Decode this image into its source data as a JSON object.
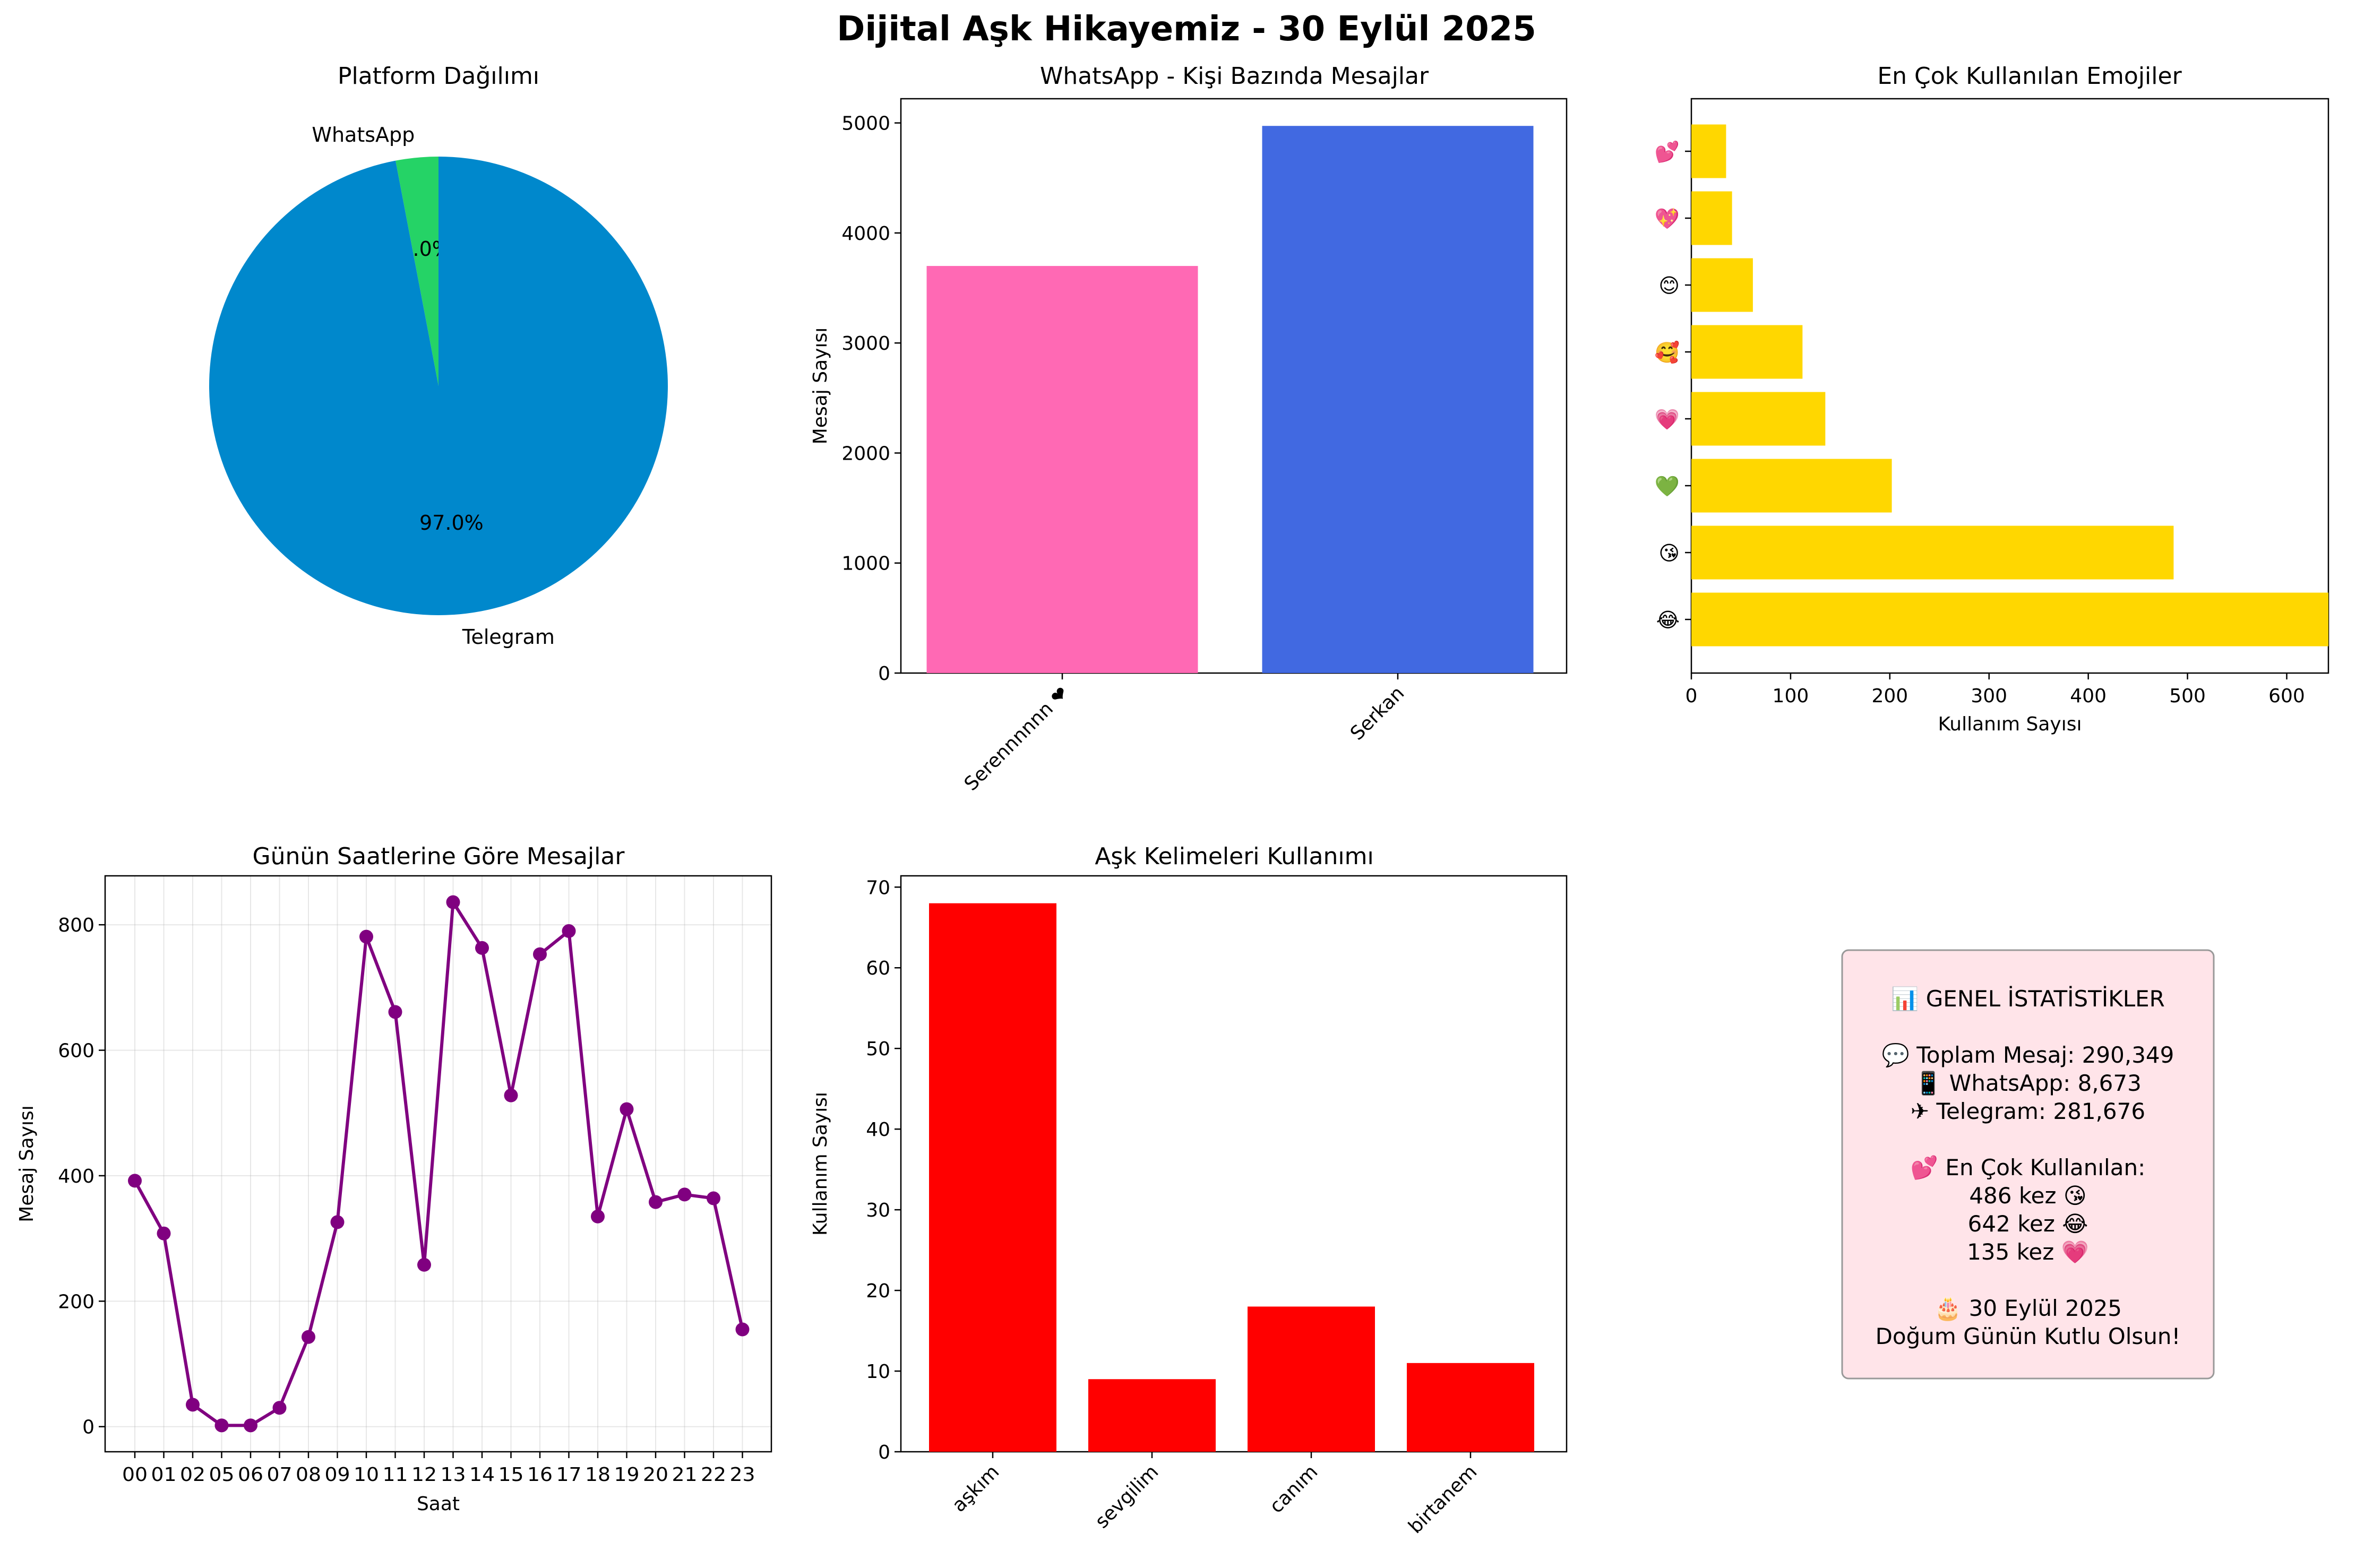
{
  "suptitle": "Dijital Aşk Hikayemiz - 30 Eylül 2025",
  "chart_data": [
    {
      "id": "pie",
      "type": "pie",
      "title": "Platform Dağılımı",
      "slices": [
        {
          "label": "WhatsApp",
          "value": 3.0,
          "pct_label": "3.0%",
          "color": "#25D366"
        },
        {
          "label": "Telegram",
          "value": 97.0,
          "pct_label": "97.0%",
          "color": "#0088CC"
        }
      ]
    },
    {
      "id": "person_bars",
      "type": "bar",
      "title": "WhatsApp - Kişi Bazında Mesajlar",
      "ylabel": "Mesaj Sayısı",
      "categories": [
        "Serennnnnn ❤",
        "Serkan"
      ],
      "values": [
        3700,
        4973
      ],
      "colors": [
        "#FF69B4",
        "#4169E1"
      ],
      "ylim": [
        0,
        5220
      ],
      "yticks": [
        0,
        1000,
        2000,
        3000,
        4000,
        5000
      ],
      "ytick_labels": [
        "0",
        "1000",
        "2000",
        "3000",
        "4000",
        "5000"
      ]
    },
    {
      "id": "emoji_bars",
      "type": "bar",
      "orientation": "horizontal",
      "title": "En Çok Kullanılan Emojiler",
      "xlabel": "Kullanım Sayısı",
      "categories": [
        "😂",
        "😘",
        "💚",
        "💗",
        "🥰",
        "😊",
        "💖",
        "💕"
      ],
      "values": [
        642,
        486,
        202,
        135,
        112,
        62,
        41,
        35
      ],
      "color": "#FFD700",
      "xlim": [
        0,
        642
      ],
      "xticks": [
        0,
        100,
        200,
        300,
        400,
        500,
        600
      ],
      "xtick_labels": [
        "0",
        "100",
        "200",
        "300",
        "400",
        "500",
        "600"
      ]
    },
    {
      "id": "hour_line",
      "type": "line",
      "title": "Günün Saatlerine Göre Mesajlar",
      "xlabel": "Saat",
      "ylabel": "Mesaj Sayısı",
      "x": [
        "00",
        "01",
        "02",
        "05",
        "06",
        "07",
        "08",
        "09",
        "10",
        "11",
        "12",
        "13",
        "14",
        "15",
        "16",
        "17",
        "18",
        "19",
        "20",
        "21",
        "22",
        "23"
      ],
      "values": [
        392,
        308,
        35,
        2,
        2,
        30,
        143,
        326,
        781,
        661,
        258,
        836,
        763,
        528,
        753,
        790,
        335,
        506,
        358,
        370,
        364,
        155
      ],
      "color": "#800080",
      "ylim": [
        -40,
        878
      ],
      "yticks": [
        0,
        200,
        400,
        600,
        800
      ],
      "ytick_labels": [
        "0",
        "200",
        "400",
        "600",
        "800"
      ],
      "grid": true
    },
    {
      "id": "word_bars",
      "type": "bar",
      "title": "Aşk Kelimeleri Kullanımı",
      "ylabel": "Kullanım Sayısı",
      "categories": [
        "aşkım",
        "sevgilim",
        "canım",
        "birtanem"
      ],
      "values": [
        68,
        9,
        18,
        11
      ],
      "color": "#FF0000",
      "ylim": [
        0,
        71.4
      ],
      "yticks": [
        0,
        10,
        20,
        30,
        40,
        50,
        60,
        70
      ],
      "ytick_labels": [
        "0",
        "10",
        "20",
        "30",
        "40",
        "50",
        "60",
        "70"
      ]
    }
  ],
  "stats_box": {
    "heading": "📊 GENEL İSTATİSTİKLER",
    "total": "💬 Toplam Mesaj: 290,349",
    "whatsapp": "📱 WhatsApp: 8,673",
    "telegram": "✈ Telegram: 281,676",
    "top_heading": "💕 En Çok Kullanılan:",
    "top_1": "486 kez 😘",
    "top_2": "642 kez 😂",
    "top_3": "135 kez 💗",
    "date_line": "🎂 30 Eylül 2025",
    "greeting": "Doğum Günün Kutlu Olsun!",
    "background": "#FFE4E9",
    "border": "#999999"
  }
}
